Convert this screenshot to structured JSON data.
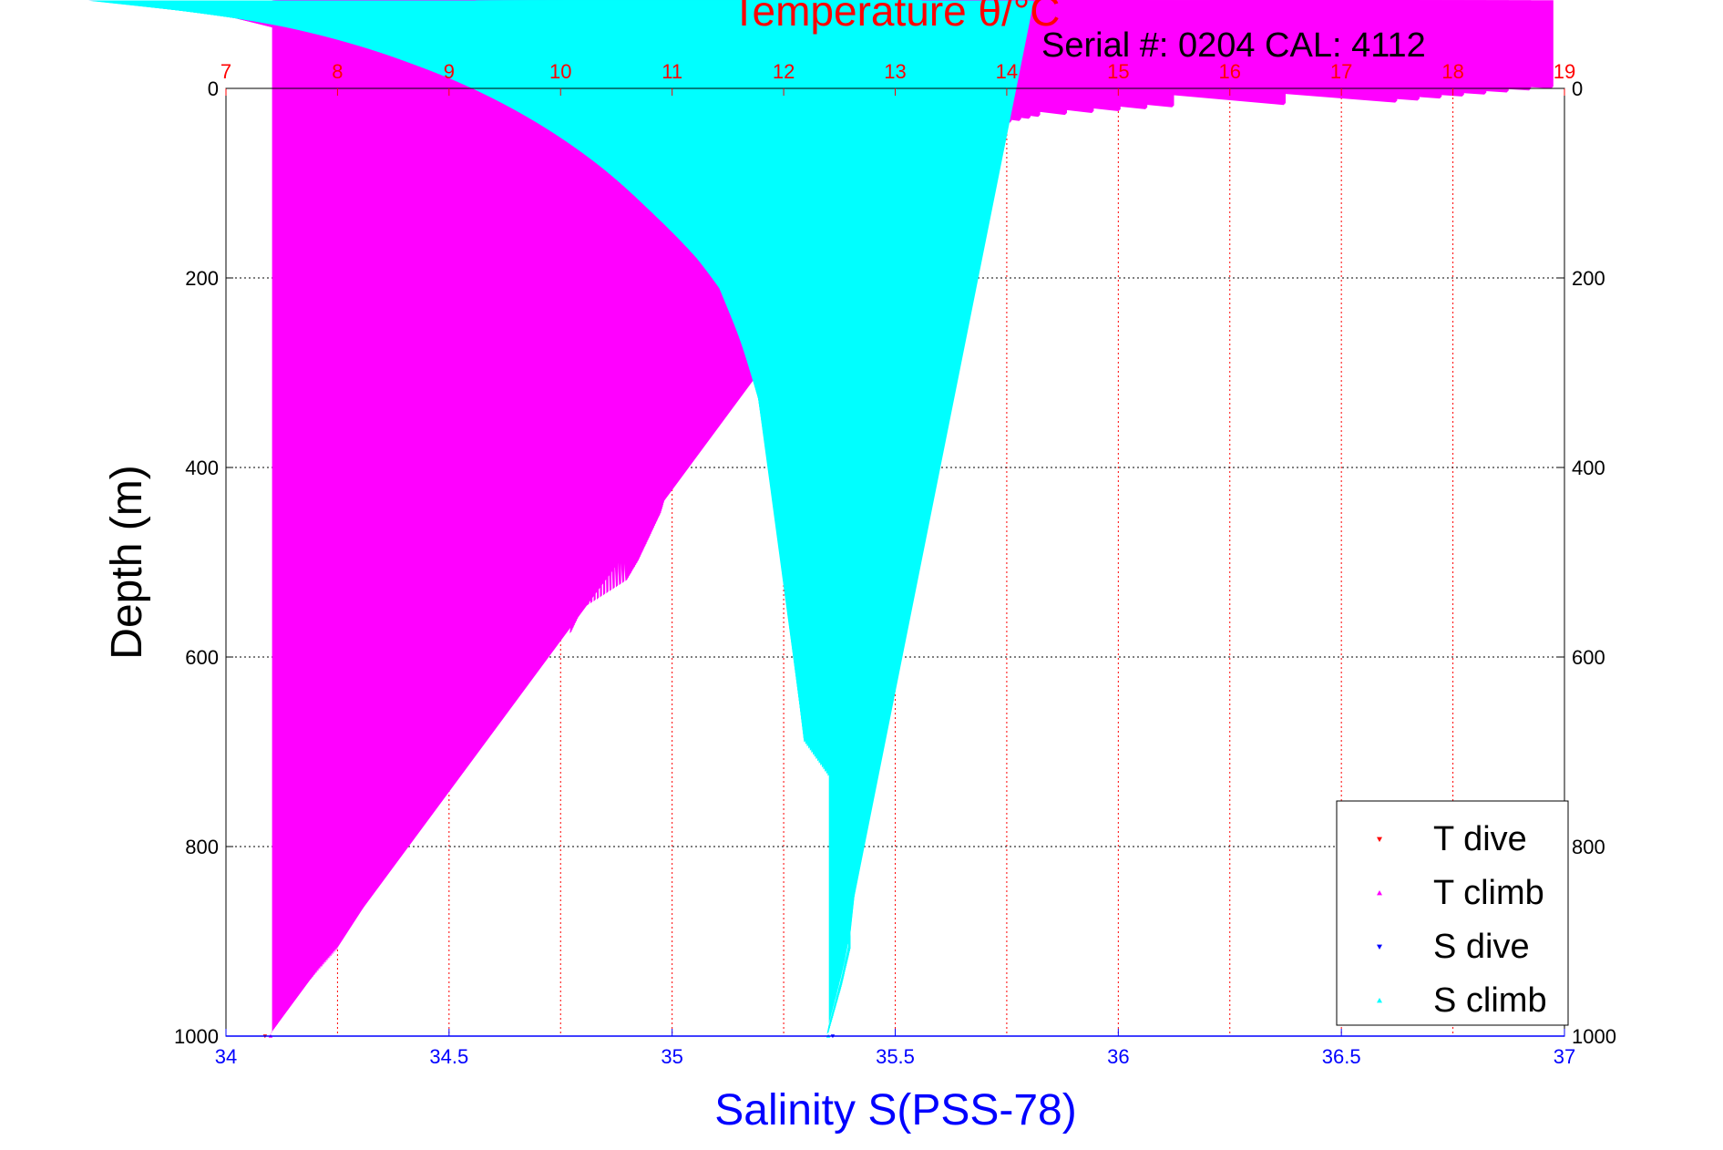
{
  "chart_data": {
    "type": "scatter",
    "title_top": "Temperature θ/°C",
    "serial_text": "Serial #: 0204  CAL: 4112",
    "xlabel_bottom": "Salinity S(PSS-78)",
    "ylabel": "Depth (m)",
    "colors": {
      "temperature_axis": "#ff0000",
      "salinity_axis": "#0000ff",
      "t_dive": "#ff0000",
      "t_climb": "#ff00ff",
      "s_dive": "#0000ff",
      "s_climb": "#00ffff",
      "grid": "#000000"
    },
    "x_top": {
      "range": [
        7,
        19
      ],
      "ticks": [
        "7",
        "8",
        "9",
        "10",
        "11",
        "12",
        "13",
        "14",
        "15",
        "16",
        "17",
        "18",
        "19"
      ]
    },
    "x_bottom": {
      "range": [
        34,
        37
      ],
      "ticks": [
        "34",
        "34.5",
        "35",
        "35.5",
        "36",
        "36.5",
        "37"
      ]
    },
    "y": {
      "range": [
        0,
        1000
      ],
      "reversed": true,
      "ticks": [
        "0",
        "200",
        "400",
        "600",
        "800",
        "1000"
      ]
    },
    "grid": true,
    "legend_position": "bottom-right",
    "legend": [
      "T dive",
      "T climb",
      "S dive",
      "S climb"
    ],
    "series": [
      {
        "name": "T dive",
        "axis": "temperature",
        "marker": "triangle-down",
        "points": [
          [
            13.3,
            0
          ],
          [
            14.3,
            20
          ],
          [
            13.7,
            40
          ],
          [
            13.3,
            60
          ],
          [
            12.8,
            75
          ],
          [
            12.4,
            90
          ],
          [
            12.3,
            100
          ],
          [
            12.1,
            120
          ],
          [
            11.9,
            140
          ],
          [
            11.8,
            160
          ],
          [
            11.7,
            180
          ],
          [
            11.6,
            200
          ],
          [
            11.5,
            240
          ],
          [
            11.4,
            280
          ],
          [
            11.3,
            300
          ],
          [
            11.2,
            340
          ],
          [
            11.1,
            370
          ],
          [
            11.05,
            400
          ],
          [
            10.95,
            440
          ],
          [
            10.8,
            480
          ],
          [
            10.7,
            510
          ],
          [
            10.6,
            530
          ],
          [
            10.3,
            550
          ],
          [
            10.15,
            570
          ],
          [
            9.8,
            590
          ],
          [
            9.7,
            610
          ],
          [
            9.3,
            640
          ],
          [
            8.9,
            670
          ],
          [
            8.8,
            700
          ],
          [
            8.8,
            760
          ],
          [
            8.6,
            790
          ],
          [
            8.3,
            820
          ],
          [
            8.2,
            860
          ],
          [
            8.1,
            900
          ],
          [
            7.9,
            930
          ],
          [
            7.6,
            960
          ],
          [
            7.35,
            1000
          ]
        ]
      },
      {
        "name": "T climb",
        "axis": "temperature",
        "marker": "triangle-up",
        "points": [
          [
            18.9,
            0
          ],
          [
            17.5,
            15
          ],
          [
            15.5,
            20
          ],
          [
            14.3,
            30
          ],
          [
            13.7,
            45
          ],
          [
            13.3,
            55
          ],
          [
            12.8,
            70
          ],
          [
            12.4,
            80
          ],
          [
            12.3,
            95
          ],
          [
            12.0,
            120
          ],
          [
            11.85,
            150
          ],
          [
            11.7,
            180
          ],
          [
            11.55,
            220
          ],
          [
            11.45,
            260
          ],
          [
            11.25,
            300
          ],
          [
            11.15,
            340
          ],
          [
            11.1,
            380
          ],
          [
            11.0,
            410
          ],
          [
            10.9,
            450
          ],
          [
            10.7,
            500
          ],
          [
            10.6,
            520
          ],
          [
            10.2,
            550
          ],
          [
            10.1,
            575
          ],
          [
            9.7,
            580
          ],
          [
            9.5,
            610
          ],
          [
            9.2,
            640
          ],
          [
            8.8,
            690
          ],
          [
            8.7,
            740
          ],
          [
            8.4,
            790
          ],
          [
            8.3,
            820
          ],
          [
            8.15,
            850
          ],
          [
            8.0,
            910
          ],
          [
            7.7,
            950
          ],
          [
            7.4,
            1000
          ]
        ]
      },
      {
        "name": "S dive",
        "axis": "salinity",
        "marker": "triangle-down",
        "points": [
          [
            35.52,
            0
          ],
          [
            35.55,
            20
          ],
          [
            35.6,
            40
          ],
          [
            35.6,
            80
          ],
          [
            35.57,
            110
          ],
          [
            35.52,
            150
          ],
          [
            35.49,
            200
          ],
          [
            35.48,
            250
          ],
          [
            35.48,
            300
          ],
          [
            35.47,
            350
          ],
          [
            35.48,
            400
          ],
          [
            35.47,
            450
          ],
          [
            35.46,
            510
          ],
          [
            35.4,
            550
          ],
          [
            35.38,
            580
          ],
          [
            35.38,
            610
          ],
          [
            35.3,
            640
          ],
          [
            35.28,
            680
          ],
          [
            35.32,
            720
          ],
          [
            35.39,
            760
          ],
          [
            35.39,
            820
          ],
          [
            35.38,
            860
          ],
          [
            35.41,
            900
          ],
          [
            35.39,
            950
          ],
          [
            35.36,
            1000
          ]
        ]
      },
      {
        "name": "S climb",
        "axis": "salinity",
        "marker": "triangle-up",
        "points": [
          [
            35.52,
            0
          ],
          [
            35.5,
            20
          ],
          [
            35.54,
            40
          ],
          [
            35.56,
            70
          ],
          [
            35.53,
            110
          ],
          [
            35.5,
            160
          ],
          [
            35.5,
            200
          ],
          [
            35.49,
            260
          ],
          [
            35.48,
            320
          ],
          [
            35.47,
            360
          ],
          [
            35.48,
            410
          ],
          [
            35.47,
            460
          ],
          [
            35.46,
            510
          ],
          [
            35.4,
            540
          ],
          [
            35.36,
            580
          ],
          [
            35.33,
            620
          ],
          [
            35.29,
            650
          ],
          [
            35.3,
            690
          ],
          [
            35.36,
            730
          ],
          [
            35.41,
            770
          ],
          [
            35.39,
            830
          ],
          [
            35.39,
            870
          ],
          [
            35.4,
            910
          ],
          [
            35.38,
            950
          ],
          [
            35.35,
            1000
          ]
        ]
      }
    ]
  }
}
